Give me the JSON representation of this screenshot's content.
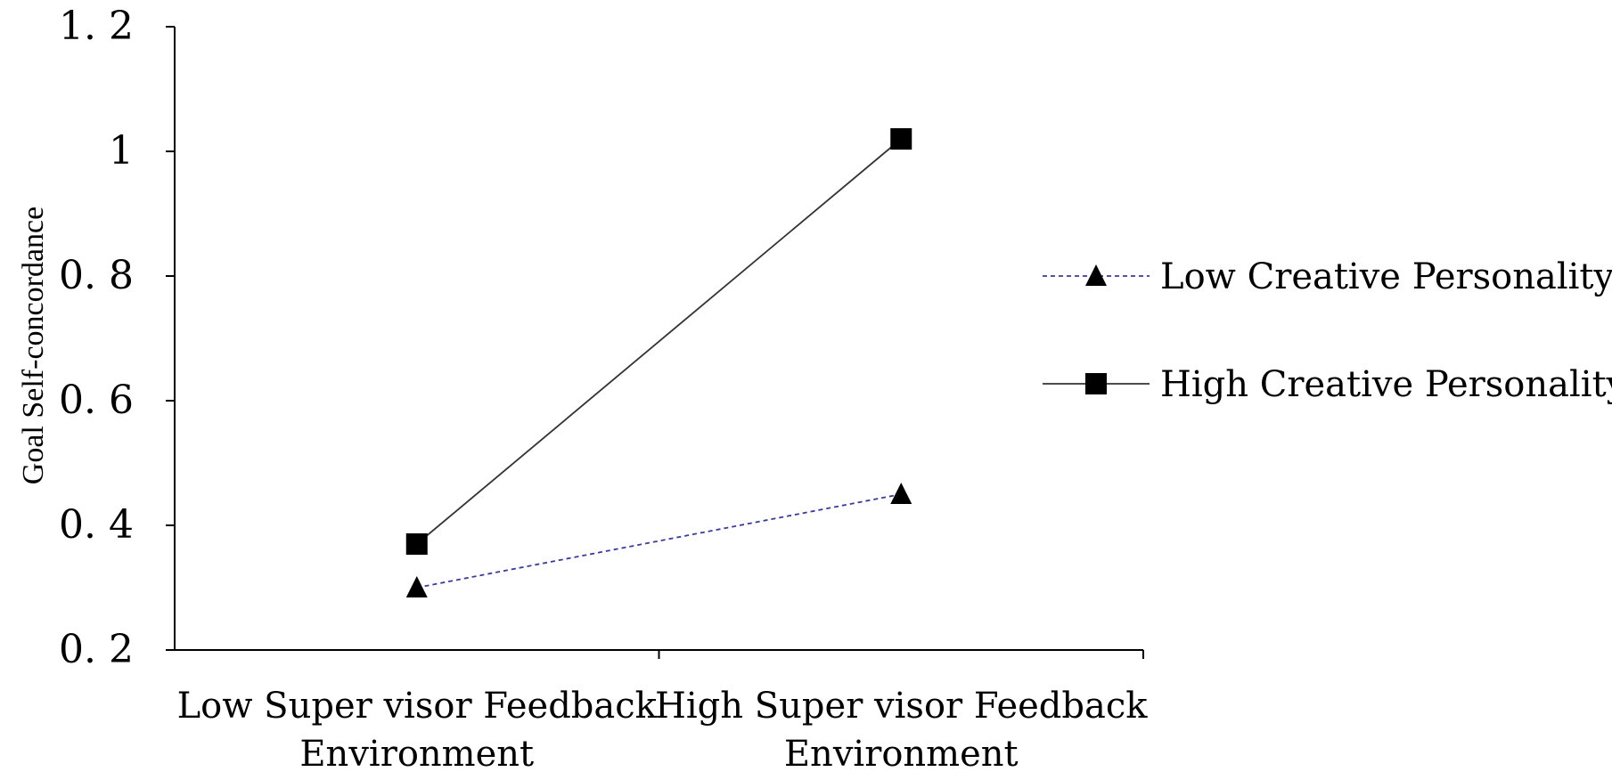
{
  "chart_data": {
    "type": "line",
    "ylabel": "Goal Self-concordance",
    "xlabel": "",
    "ylim": [
      0.2,
      1.2
    ],
    "yticks": [
      "0. 2",
      "0. 4",
      "0. 6",
      "0. 8",
      "1",
      "1. 2"
    ],
    "ytick_values": [
      0.2,
      0.4,
      0.6,
      0.8,
      1.0,
      1.2
    ],
    "categories": [
      [
        "Low Super visor Feedback",
        "Environment"
      ],
      [
        "High Super visor Feedback",
        "Environment"
      ]
    ],
    "series": [
      {
        "name": "Low Creative Personality",
        "values": [
          0.3,
          0.45
        ],
        "color": "#3a3aa0",
        "line_style": "dashed",
        "marker": "triangle"
      },
      {
        "name": "High Creative Personality",
        "values": [
          0.37,
          1.02
        ],
        "color": "#333333",
        "line_style": "solid",
        "marker": "square"
      }
    ],
    "legend": {
      "position": "right",
      "items": [
        "Low Creative Personality",
        "High Creative Personality"
      ]
    },
    "grid": false
  }
}
